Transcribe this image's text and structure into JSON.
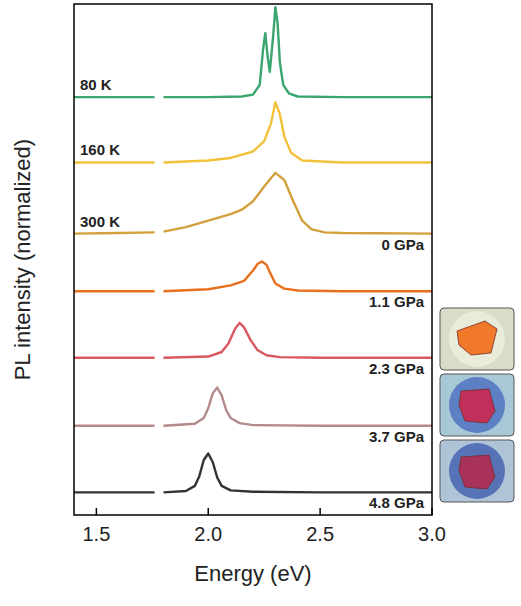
{
  "chart_data": {
    "type": "line",
    "x_label": "Energy (eV)",
    "y_label": "PL intensity (normalized)",
    "xlim": [
      1.4,
      3.0
    ],
    "xticks": [
      1.5,
      {
        "value": 2.0,
        "label": "2.0"
      },
      2.5,
      {
        "value": 3.0,
        "label": "3.0"
      }
    ],
    "ylim": [
      0,
      7.9
    ],
    "tick_labels": "x",
    "grid": false,
    "series": [
      {
        "name": "80 K",
        "color": "#3aa66e",
        "x": [
          1.4,
          1.6,
          1.76,
          1.78,
          1.8,
          2.0,
          2.15,
          2.2,
          2.23,
          2.245,
          2.255,
          2.265,
          2.275,
          2.29,
          2.3,
          2.31,
          2.32,
          2.335,
          2.36,
          2.4,
          2.6,
          3.0
        ],
        "values": [
          6.46,
          6.46,
          6.46,
          null,
          6.46,
          6.46,
          6.47,
          6.5,
          6.65,
          7.2,
          7.45,
          7.1,
          6.85,
          7.4,
          7.85,
          7.6,
          7.0,
          6.65,
          6.52,
          6.47,
          6.46,
          6.46
        ]
      },
      {
        "name": "160 K",
        "color": "#f2c23c",
        "x": [
          1.4,
          1.6,
          1.76,
          1.78,
          1.8,
          2.0,
          2.1,
          2.2,
          2.25,
          2.28,
          2.3,
          2.32,
          2.34,
          2.37,
          2.42,
          2.6,
          3.0
        ],
        "values": [
          5.45,
          5.45,
          5.45,
          null,
          5.45,
          5.48,
          5.52,
          5.62,
          5.78,
          6.05,
          6.38,
          6.2,
          5.85,
          5.6,
          5.48,
          5.45,
          5.45
        ]
      },
      {
        "name": "300 K",
        "annotation": "0 GPa",
        "color": "#d2a03c",
        "x": [
          1.4,
          1.6,
          1.76,
          1.78,
          1.8,
          1.9,
          2.0,
          2.1,
          2.15,
          2.2,
          2.25,
          2.3,
          2.34,
          2.38,
          2.42,
          2.46,
          2.52,
          2.6,
          3.0
        ],
        "values": [
          4.35,
          4.36,
          4.37,
          null,
          4.38,
          4.45,
          4.55,
          4.65,
          4.72,
          4.85,
          5.08,
          5.29,
          5.18,
          4.85,
          4.55,
          4.42,
          4.37,
          4.36,
          4.35
        ]
      },
      {
        "name": "1.1 GPa",
        "color": "#e8701e",
        "x": [
          1.4,
          1.6,
          1.76,
          1.78,
          1.8,
          2.0,
          2.1,
          2.16,
          2.2,
          2.22,
          2.24,
          2.26,
          2.28,
          2.3,
          2.34,
          2.4,
          2.6,
          3.0
        ],
        "values": [
          3.46,
          3.46,
          3.46,
          null,
          3.46,
          3.49,
          3.55,
          3.62,
          3.78,
          3.88,
          3.92,
          3.87,
          3.72,
          3.58,
          3.5,
          3.47,
          3.46,
          3.46
        ]
      },
      {
        "name": "2.3 GPa",
        "color": "#d9585f",
        "x": [
          1.4,
          1.6,
          1.76,
          1.78,
          1.8,
          2.0,
          2.06,
          2.09,
          2.12,
          2.14,
          2.16,
          2.19,
          2.22,
          2.26,
          2.32,
          2.5,
          3.0
        ],
        "values": [
          2.43,
          2.43,
          2.43,
          null,
          2.43,
          2.45,
          2.52,
          2.65,
          2.88,
          2.97,
          2.9,
          2.7,
          2.55,
          2.47,
          2.44,
          2.43,
          2.43
        ]
      },
      {
        "name": "3.7 GPa",
        "color": "#b58a8a",
        "x": [
          1.4,
          1.6,
          1.76,
          1.78,
          1.8,
          1.94,
          1.98,
          2.0,
          2.02,
          2.04,
          2.06,
          2.08,
          2.1,
          2.14,
          2.2,
          2.5,
          3.0
        ],
        "values": [
          1.38,
          1.38,
          1.38,
          null,
          1.38,
          1.41,
          1.5,
          1.65,
          1.88,
          1.97,
          1.85,
          1.62,
          1.5,
          1.42,
          1.39,
          1.38,
          1.38
        ]
      },
      {
        "name": "4.8 GPa",
        "color": "#333333",
        "x": [
          1.4,
          1.6,
          1.76,
          1.78,
          1.8,
          1.9,
          1.94,
          1.96,
          1.98,
          2.0,
          2.02,
          2.04,
          2.06,
          2.1,
          2.2,
          2.5,
          3.0
        ],
        "values": [
          0.35,
          0.35,
          0.35,
          null,
          0.35,
          0.37,
          0.45,
          0.6,
          0.85,
          0.95,
          0.82,
          0.58,
          0.45,
          0.38,
          0.36,
          0.35,
          0.35
        ]
      }
    ]
  }
}
